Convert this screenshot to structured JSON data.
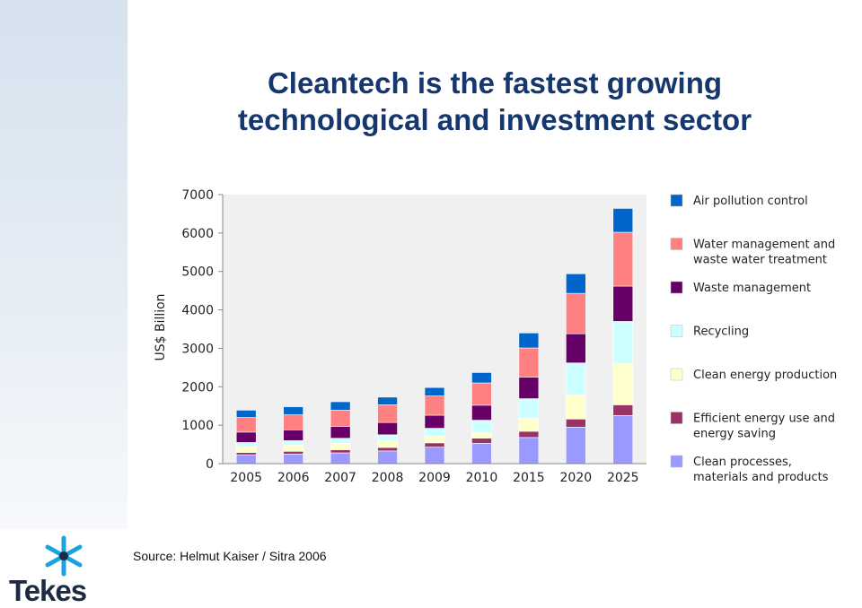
{
  "slide": {
    "title_line1": "Cleantech is the fastest growing",
    "title_line2": "technological and investment sector",
    "source": "Source: Helmut Kaiser / Sitra 2006",
    "logo_text": "Tekes"
  },
  "chart_data": {
    "type": "bar",
    "stacked": true,
    "title": "",
    "xlabel": "",
    "ylabel": "US$ Billion",
    "ylim": [
      0,
      7000
    ],
    "yticks": [
      0,
      1000,
      2000,
      3000,
      4000,
      5000,
      6000,
      7000
    ],
    "grid": false,
    "legend_position": "right",
    "categories": [
      "2005",
      "2006",
      "2007",
      "2008",
      "2009",
      "2010",
      "2015",
      "2020",
      "2025"
    ],
    "series": [
      {
        "name": "Clean processes, materials and products",
        "color": "#9999ff",
        "values": [
          230,
          250,
          280,
          330,
          430,
          530,
          680,
          950,
          1250
        ]
      },
      {
        "name": "Efficient energy use and energy saving",
        "color": "#993366",
        "values": [
          60,
          70,
          80,
          90,
          110,
          130,
          160,
          210,
          280
        ]
      },
      {
        "name": "Clean energy production",
        "color": "#ffffcc",
        "values": [
          150,
          160,
          170,
          180,
          180,
          150,
          340,
          630,
          1080
        ]
      },
      {
        "name": "Recycling",
        "color": "#ccffff",
        "values": [
          110,
          120,
          130,
          150,
          200,
          320,
          510,
          830,
          1090
        ]
      },
      {
        "name": "Waste management",
        "color": "#660066",
        "values": [
          270,
          280,
          310,
          320,
          340,
          390,
          560,
          760,
          920
        ]
      },
      {
        "name": "Water management and waste water treatment",
        "color": "#ff8080",
        "values": [
          380,
          390,
          420,
          460,
          500,
          580,
          760,
          1050,
          1400
        ]
      },
      {
        "name": "Air pollution control",
        "color": "#0066cc",
        "values": [
          190,
          210,
          220,
          200,
          220,
          270,
          390,
          510,
          620
        ]
      }
    ]
  },
  "legend_lines": [
    [
      "Air pollution control"
    ],
    [
      "Water management and",
      "waste water treatment"
    ],
    [
      "Waste management"
    ],
    [
      "Recycling"
    ],
    [
      "Clean energy production"
    ],
    [
      "Efficient energy use and",
      "energy saving"
    ],
    [
      "Clean processes,",
      "materials and products"
    ]
  ]
}
